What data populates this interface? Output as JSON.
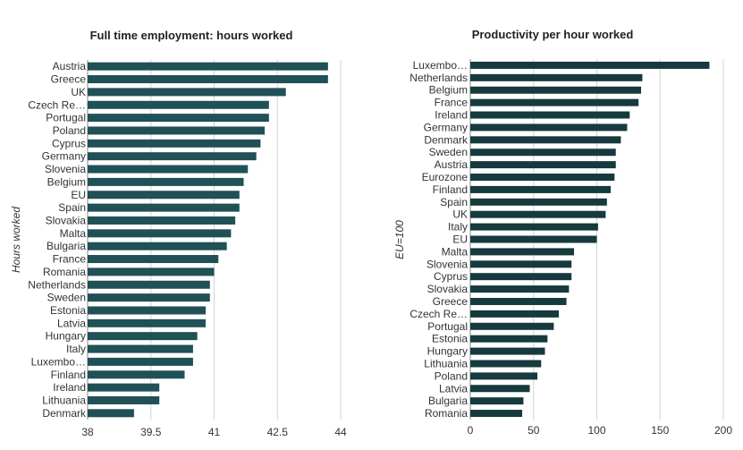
{
  "chart_data": [
    {
      "type": "bar",
      "orientation": "horizontal",
      "title": "Full time employment: hours worked",
      "ylabel": "Hours worked",
      "xlim": [
        38,
        44
      ],
      "xticks": [
        38,
        39.5,
        41,
        42.5,
        44
      ],
      "color": "#1f5157",
      "categories": [
        "Austria",
        "Greece",
        "UK",
        "Czech Re…",
        "Portugal",
        "Poland",
        "Cyprus",
        "Germany",
        "Slovenia",
        "Belgium",
        "EU",
        "Spain",
        "Slovakia",
        "Malta",
        "Bulgaria",
        "France",
        "Romania",
        "Netherlands",
        "Sweden",
        "Estonia",
        "Latvia",
        "Hungary",
        "Italy",
        "Luxembo…",
        "Finland",
        "Ireland",
        "Lithuania",
        "Denmark"
      ],
      "values": [
        43.7,
        43.7,
        42.7,
        42.3,
        42.3,
        42.2,
        42.1,
        42.0,
        41.8,
        41.7,
        41.6,
        41.6,
        41.5,
        41.4,
        41.3,
        41.1,
        41.0,
        40.9,
        40.9,
        40.8,
        40.8,
        40.6,
        40.5,
        40.5,
        40.3,
        39.7,
        39.7,
        39.1
      ]
    },
    {
      "type": "bar",
      "orientation": "horizontal",
      "title": "Productivity per hour worked",
      "ylabel": "EU=100",
      "xlim": [
        0,
        200
      ],
      "xticks": [
        0,
        50,
        100,
        150,
        200
      ],
      "color": "#163a3e",
      "categories": [
        "Luxembo…",
        "Netherlands",
        "Belgium",
        "France",
        "Ireland",
        "Germany",
        "Denmark",
        "Sweden",
        "Austria",
        "Eurozone",
        "Finland",
        "Spain",
        "UK",
        "Italy",
        "EU",
        "Malta",
        "Slovenia",
        "Cyprus",
        "Slovakia",
        "Greece",
        "Czech Re…",
        "Portugal",
        "Estonia",
        "Hungary",
        "Lithuania",
        "Poland",
        "Latvia",
        "Bulgaria",
        "Romania"
      ],
      "values": [
        189,
        136,
        135,
        133,
        126,
        124,
        119,
        115,
        115,
        114,
        111,
        108,
        107,
        101,
        100,
        82,
        80,
        80,
        78,
        76,
        70,
        66,
        61,
        59,
        56,
        53,
        47,
        42,
        41
      ]
    }
  ]
}
